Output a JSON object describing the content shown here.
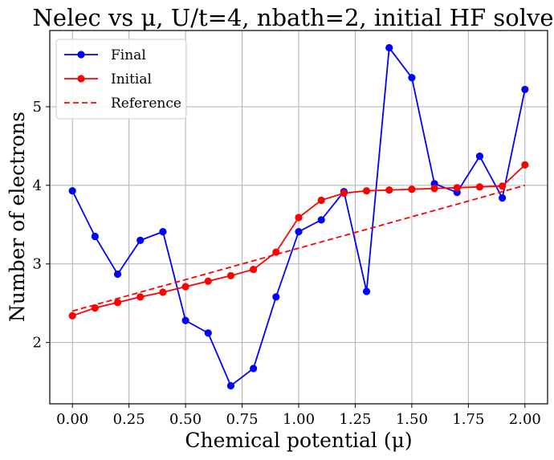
{
  "chart_data": {
    "type": "line",
    "title": "Nelec vs μ, U/t=4, nbath=2, initial HF solver",
    "xlabel": "Chemical potential (μ)",
    "ylabel": "Number of electrons",
    "xlim": [
      -0.1,
      2.1
    ],
    "ylim": [
      1.22,
      5.97
    ],
    "xticks": [
      0.0,
      0.25,
      0.5,
      0.75,
      1.0,
      1.25,
      1.5,
      1.75,
      2.0
    ],
    "xtick_labels": [
      "0.00",
      "0.25",
      "0.50",
      "0.75",
      "1.00",
      "1.25",
      "1.50",
      "1.75",
      "2.00"
    ],
    "yticks": [
      2,
      3,
      4,
      5
    ],
    "ytick_labels": [
      "2",
      "3",
      "4",
      "5"
    ],
    "grid": true,
    "legend_position": "top-left",
    "series": [
      {
        "name": "Final",
        "style": "solid-markers",
        "color": "#0000ff",
        "x": [
          0.0,
          0.1,
          0.2,
          0.3,
          0.4,
          0.5,
          0.6,
          0.7,
          0.8,
          0.9,
          1.0,
          1.1,
          1.2,
          1.3,
          1.4,
          1.5,
          1.6,
          1.7,
          1.8,
          1.9,
          2.0
        ],
        "y": [
          3.93,
          3.35,
          2.87,
          3.3,
          3.41,
          2.28,
          2.12,
          1.45,
          1.67,
          2.58,
          3.41,
          3.56,
          3.92,
          2.65,
          5.75,
          5.37,
          4.02,
          3.91,
          4.37,
          3.84,
          5.22
        ]
      },
      {
        "name": "Initial",
        "style": "solid-markers",
        "color": "#ff0000",
        "x": [
          0.0,
          0.1,
          0.2,
          0.3,
          0.4,
          0.5,
          0.6,
          0.7,
          0.8,
          0.9,
          1.0,
          1.1,
          1.2,
          1.3,
          1.4,
          1.5,
          1.6,
          1.7,
          1.8,
          1.9,
          2.0
        ],
        "y": [
          2.34,
          2.44,
          2.51,
          2.58,
          2.64,
          2.71,
          2.78,
          2.85,
          2.93,
          3.15,
          3.59,
          3.81,
          3.9,
          3.93,
          3.94,
          3.95,
          3.96,
          3.97,
          3.98,
          3.99,
          4.26
        ]
      },
      {
        "name": "Reference",
        "style": "dashed",
        "color": "#ff0000",
        "x": [
          0.0,
          2.0
        ],
        "y": [
          2.4,
          4.0
        ]
      }
    ]
  }
}
